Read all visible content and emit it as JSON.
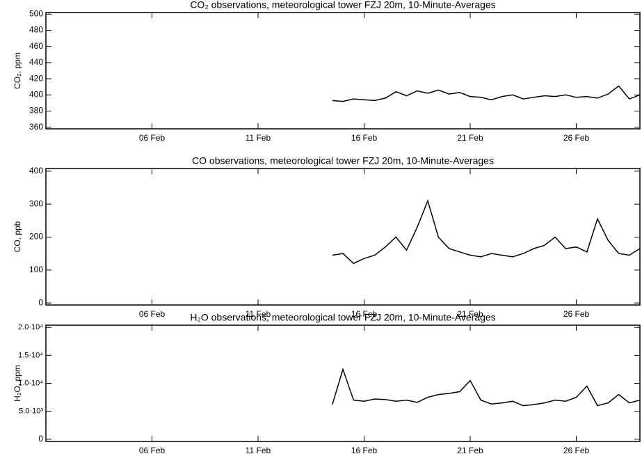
{
  "chart_data": [
    {
      "type": "line",
      "title": "CO₂ observations, meteorological tower FZJ 20m, 10-Minute-Averages",
      "y_label": "CO₂, ppm",
      "x": [
        14.5,
        15,
        15.5,
        16,
        16.5,
        17,
        17.5,
        18,
        18.5,
        19,
        19.5,
        20,
        20.5,
        21,
        21.5,
        22,
        22.5,
        23,
        23.5,
        24,
        24.5,
        25,
        25.5,
        26,
        26.5,
        27,
        27.5,
        28,
        28.5,
        29
      ],
      "series": [
        {
          "color": "#000000",
          "values": [
            393,
            392,
            395,
            394,
            393,
            396,
            404,
            399,
            405,
            402,
            406,
            401,
            403,
            398,
            397,
            394,
            398,
            400,
            395,
            397,
            399,
            398,
            400,
            397,
            398,
            396,
            401,
            411,
            395,
            400
          ]
        }
      ],
      "xlim": [
        1,
        29
      ],
      "xticks": [
        {
          "value": 6,
          "label": "06 Feb"
        },
        {
          "value": 11,
          "label": "11 Feb"
        },
        {
          "value": 16,
          "label": "16 Feb"
        },
        {
          "value": 21,
          "label": "21 Feb"
        },
        {
          "value": 26,
          "label": "26 Feb"
        }
      ],
      "ylim": [
        358,
        502
      ],
      "yticks": [
        360,
        380,
        400,
        420,
        440,
        460,
        480,
        500
      ]
    },
    {
      "type": "line",
      "title": "CO observations, meteorological tower FZJ 20m, 10-Minute-Averages",
      "y_label": "CO, ppb",
      "x": [
        14.5,
        15,
        15.5,
        16,
        16.5,
        17,
        17.5,
        18,
        18.5,
        19,
        19.5,
        20,
        20.5,
        21,
        21.5,
        22,
        22.5,
        23,
        23.5,
        24,
        24.5,
        25,
        25.5,
        26,
        26.5,
        27,
        27.5,
        28,
        28.5,
        29
      ],
      "series": [
        {
          "color": "#000000",
          "values": [
            145,
            150,
            120,
            135,
            145,
            170,
            200,
            160,
            230,
            310,
            200,
            165,
            155,
            145,
            140,
            150,
            145,
            140,
            150,
            165,
            175,
            200,
            165,
            170,
            155,
            255,
            190,
            150,
            145,
            165
          ]
        }
      ],
      "xlim": [
        1,
        29
      ],
      "xticks": [
        {
          "value": 6,
          "label": "06 Feb"
        },
        {
          "value": 11,
          "label": "11 Feb"
        },
        {
          "value": 16,
          "label": "16 Feb"
        },
        {
          "value": 21,
          "label": "21 Feb"
        },
        {
          "value": 26,
          "label": "26 Feb"
        }
      ],
      "ylim": [
        -6,
        408
      ],
      "yticks": [
        0,
        100,
        200,
        300,
        400
      ]
    },
    {
      "type": "line",
      "title": "H₂O observations, meteorological tower FZJ 20m, 10-Minute-Averages",
      "y_label": "H₂O, ppm",
      "x": [
        14.5,
        15,
        15.5,
        16,
        16.5,
        17,
        17.5,
        18,
        18.5,
        19,
        19.5,
        20,
        20.5,
        21,
        21.5,
        22,
        22.5,
        23,
        23.5,
        24,
        24.5,
        25,
        25.5,
        26,
        26.5,
        27,
        27.5,
        28,
        28.5,
        29
      ],
      "series": [
        {
          "color": "#000000",
          "values": [
            6200,
            12500,
            7000,
            6800,
            7200,
            7100,
            6800,
            7000,
            6600,
            7500,
            8000,
            8200,
            8500,
            10500,
            7000,
            6300,
            6500,
            6800,
            6000,
            6200,
            6500,
            7000,
            6800,
            7500,
            9500,
            6000,
            6500,
            8000,
            6500,
            7000
          ]
        }
      ],
      "xlim": [
        1,
        29
      ],
      "xticks": [
        {
          "value": 6,
          "label": "06 Feb"
        },
        {
          "value": 11,
          "label": "11 Feb"
        },
        {
          "value": 16,
          "label": "16 Feb"
        },
        {
          "value": 21,
          "label": "21 Feb"
        },
        {
          "value": 26,
          "label": "26 Feb"
        }
      ],
      "ylim": [
        -400,
        20400
      ],
      "yticks": [
        0,
        {
          "value": 5000,
          "label": "5.0·10³"
        },
        {
          "value": 10000,
          "label": "1.0·10⁴"
        },
        {
          "value": 15000,
          "label": "1.5·10⁴"
        },
        {
          "value": 20000,
          "label": "2.0·10⁴"
        }
      ]
    }
  ]
}
